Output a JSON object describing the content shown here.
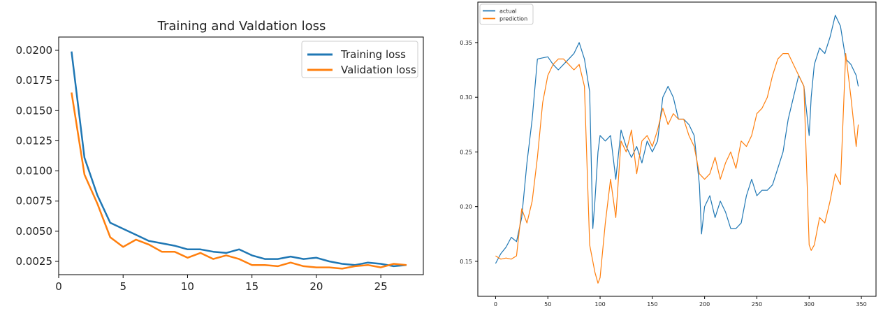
{
  "chart_data": [
    {
      "type": "line",
      "title": "Training and Valdation loss",
      "xlabel": "",
      "ylabel": "",
      "xlim": [
        0,
        28.3
      ],
      "ylim": [
        0.0014,
        0.0211
      ],
      "xticks": [
        0,
        5,
        10,
        15,
        20,
        25
      ],
      "yticks": [
        0.0025,
        0.005,
        0.0075,
        0.01,
        0.0125,
        0.015,
        0.0175,
        0.02
      ],
      "ytick_labels": [
        "0.0025",
        "0.0050",
        "0.0075",
        "0.0100",
        "0.0125",
        "0.0150",
        "0.0175",
        "0.0200"
      ],
      "legend": "top-right",
      "grid": false,
      "series": [
        {
          "name": "Training loss",
          "color": "#1f77b4",
          "x": [
            1,
            2,
            3,
            4,
            5,
            6,
            7,
            8,
            9,
            10,
            11,
            12,
            13,
            14,
            15,
            16,
            17,
            18,
            19,
            20,
            21,
            22,
            23,
            24,
            25,
            26,
            27
          ],
          "values": [
            0.0199,
            0.0111,
            0.008,
            0.0057,
            0.0052,
            0.0047,
            0.0042,
            0.004,
            0.0038,
            0.0035,
            0.0035,
            0.0033,
            0.0032,
            0.0035,
            0.003,
            0.0027,
            0.0027,
            0.0029,
            0.0027,
            0.0028,
            0.0025,
            0.0023,
            0.0022,
            0.0024,
            0.0023,
            0.0021,
            0.0022
          ]
        },
        {
          "name": "Validation loss",
          "color": "#ff7f0e",
          "x": [
            1,
            2,
            3,
            4,
            5,
            6,
            7,
            8,
            9,
            10,
            11,
            12,
            13,
            14,
            15,
            16,
            17,
            18,
            19,
            20,
            21,
            22,
            23,
            24,
            25,
            26,
            27
          ],
          "values": [
            0.0165,
            0.0097,
            0.0073,
            0.0045,
            0.0037,
            0.0043,
            0.0039,
            0.0033,
            0.0033,
            0.0028,
            0.0032,
            0.0027,
            0.003,
            0.0027,
            0.0022,
            0.0022,
            0.0021,
            0.0024,
            0.0021,
            0.002,
            0.002,
            0.0019,
            0.0021,
            0.0022,
            0.002,
            0.0023,
            0.0022
          ]
        }
      ]
    },
    {
      "type": "line",
      "title": "",
      "xlabel": "",
      "ylabel": "",
      "xlim": [
        -17,
        364
      ],
      "ylim": [
        0.118,
        0.387
      ],
      "xticks": [
        0,
        50,
        100,
        150,
        200,
        250,
        300,
        350
      ],
      "yticks": [
        0.15,
        0.2,
        0.25,
        0.3,
        0.35
      ],
      "ytick_labels": [
        "0.15",
        "0.20",
        "0.25",
        "0.30",
        "0.35"
      ],
      "legend": "top-left",
      "grid": false,
      "series": [
        {
          "name": "actual",
          "color": "#1f77b4",
          "x": [
            0,
            5,
            10,
            15,
            20,
            25,
            30,
            35,
            40,
            45,
            50,
            55,
            60,
            65,
            70,
            75,
            80,
            85,
            90,
            93,
            95,
            98,
            100,
            105,
            110,
            115,
            120,
            125,
            130,
            135,
            140,
            145,
            150,
            155,
            160,
            165,
            170,
            175,
            180,
            185,
            190,
            195,
            197,
            200,
            205,
            210,
            215,
            220,
            225,
            230,
            235,
            240,
            245,
            250,
            255,
            260,
            265,
            270,
            275,
            280,
            285,
            290,
            295,
            300,
            302,
            305,
            310,
            315,
            320,
            325,
            330,
            335,
            340,
            345,
            347
          ],
          "values": [
            0.148,
            0.157,
            0.163,
            0.172,
            0.168,
            0.19,
            0.24,
            0.28,
            0.335,
            0.336,
            0.337,
            0.33,
            0.325,
            0.33,
            0.335,
            0.34,
            0.35,
            0.335,
            0.305,
            0.18,
            0.205,
            0.25,
            0.265,
            0.26,
            0.265,
            0.225,
            0.27,
            0.255,
            0.245,
            0.255,
            0.24,
            0.26,
            0.25,
            0.26,
            0.3,
            0.31,
            0.3,
            0.28,
            0.28,
            0.275,
            0.265,
            0.22,
            0.175,
            0.2,
            0.21,
            0.19,
            0.205,
            0.195,
            0.18,
            0.18,
            0.185,
            0.21,
            0.225,
            0.21,
            0.215,
            0.215,
            0.22,
            0.235,
            0.25,
            0.28,
            0.3,
            0.32,
            0.31,
            0.265,
            0.3,
            0.33,
            0.345,
            0.34,
            0.355,
            0.375,
            0.365,
            0.335,
            0.33,
            0.32,
            0.31
          ]
        },
        {
          "name": "prediction",
          "color": "#ff7f0e",
          "x": [
            0,
            5,
            10,
            15,
            20,
            25,
            30,
            35,
            40,
            45,
            50,
            55,
            60,
            65,
            70,
            75,
            80,
            85,
            90,
            95,
            98,
            100,
            105,
            110,
            115,
            120,
            125,
            130,
            135,
            140,
            145,
            150,
            155,
            160,
            165,
            170,
            175,
            180,
            185,
            190,
            195,
            200,
            205,
            210,
            215,
            220,
            225,
            230,
            235,
            240,
            245,
            250,
            255,
            260,
            265,
            270,
            275,
            280,
            285,
            290,
            295,
            300,
            302,
            305,
            310,
            315,
            320,
            325,
            330,
            335,
            340,
            345,
            347
          ],
          "values": [
            0.155,
            0.152,
            0.153,
            0.152,
            0.155,
            0.198,
            0.185,
            0.205,
            0.245,
            0.295,
            0.32,
            0.33,
            0.335,
            0.335,
            0.33,
            0.325,
            0.33,
            0.31,
            0.165,
            0.14,
            0.13,
            0.135,
            0.185,
            0.225,
            0.19,
            0.26,
            0.25,
            0.27,
            0.23,
            0.26,
            0.265,
            0.255,
            0.27,
            0.29,
            0.275,
            0.285,
            0.28,
            0.28,
            0.265,
            0.255,
            0.23,
            0.225,
            0.23,
            0.245,
            0.225,
            0.24,
            0.25,
            0.235,
            0.26,
            0.255,
            0.265,
            0.285,
            0.29,
            0.3,
            0.32,
            0.335,
            0.34,
            0.34,
            0.33,
            0.32,
            0.31,
            0.165,
            0.16,
            0.165,
            0.19,
            0.185,
            0.205,
            0.23,
            0.22,
            0.34,
            0.3,
            0.255,
            0.275
          ]
        }
      ]
    }
  ]
}
